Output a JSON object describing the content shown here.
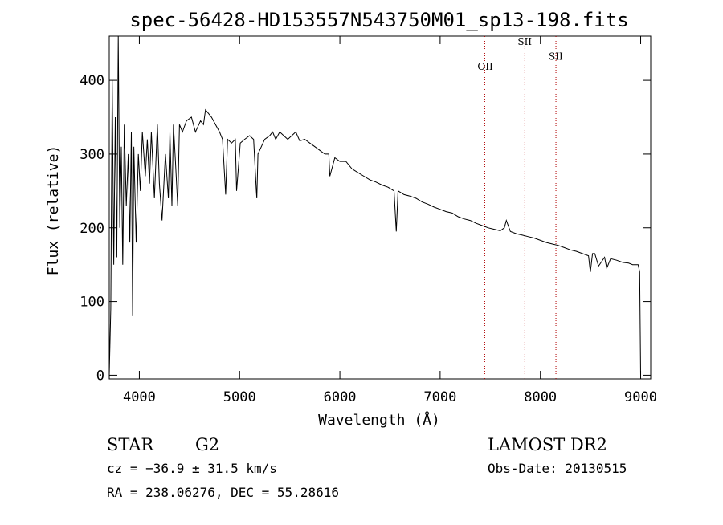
{
  "chart_data": {
    "type": "line",
    "title": "spec-56428-HD153557N543750M01_sp13-198.fits",
    "xlabel": "Wavelength (Å)",
    "ylabel": "Flux (relative)",
    "xlim": [
      3700,
      9100
    ],
    "ylim": [
      -5,
      460
    ],
    "xticks": [
      "4000",
      "5000",
      "6000",
      "7000",
      "8000",
      "9000"
    ],
    "yticks": [
      "0",
      "100",
      "200",
      "300",
      "400"
    ],
    "xtick_values": [
      4000,
      5000,
      6000,
      7000,
      8000,
      9000
    ],
    "ytick_values": [
      0,
      100,
      200,
      300,
      400
    ],
    "grid": false,
    "series": [
      {
        "x": [
          3700,
          3715,
          3730,
          3745,
          3760,
          3775,
          3790,
          3805,
          3820,
          3835,
          3850,
          3870,
          3890,
          3905,
          3920,
          3933,
          3945,
          3968,
          3990,
          4010,
          4030,
          4060,
          4080,
          4101,
          4120,
          4150,
          4180,
          4200,
          4226,
          4260,
          4290,
          4305,
          4325,
          4340,
          4360,
          4383,
          4400,
          4430,
          4470,
          4520,
          4560,
          4610,
          4640,
          4660,
          4690,
          4720,
          4760,
          4800,
          4830,
          4861,
          4880,
          4920,
          4957,
          4970,
          5007,
          5050,
          5100,
          5140,
          5167,
          5172,
          5183,
          5200,
          5250,
          5300,
          5330,
          5360,
          5400,
          5440,
          5480,
          5520,
          5560,
          5600,
          5650,
          5700,
          5750,
          5800,
          5850,
          5890,
          5900,
          5950,
          6000,
          6060,
          6120,
          6180,
          6240,
          6300,
          6360,
          6420,
          6480,
          6540,
          6563,
          6580,
          6640,
          6700,
          6760,
          6820,
          6880,
          6940,
          7000,
          7060,
          7120,
          7180,
          7240,
          7300,
          7360,
          7420,
          7480,
          7540,
          7600,
          7640,
          7660,
          7700,
          7760,
          7820,
          7880,
          7940,
          8000,
          8060,
          8120,
          8180,
          8240,
          8300,
          8360,
          8420,
          8480,
          8498,
          8520,
          8542,
          8580,
          8640,
          8662,
          8700,
          8760,
          8820,
          8880,
          8920,
          8950,
          8975,
          8990,
          9000
        ],
        "y": [
          0,
          90,
          400,
          150,
          350,
          160,
          460,
          200,
          310,
          150,
          340,
          230,
          300,
          180,
          330,
          80,
          310,
          180,
          300,
          250,
          330,
          270,
          320,
          260,
          330,
          240,
          340,
          260,
          210,
          300,
          240,
          330,
          230,
          340,
          290,
          230,
          340,
          330,
          345,
          350,
          330,
          345,
          340,
          360,
          355,
          350,
          340,
          330,
          320,
          245,
          320,
          315,
          320,
          250,
          315,
          320,
          325,
          320,
          250,
          240,
          300,
          305,
          320,
          325,
          330,
          320,
          330,
          325,
          320,
          325,
          330,
          318,
          320,
          315,
          310,
          305,
          300,
          300,
          270,
          295,
          290,
          290,
          280,
          275,
          270,
          265,
          262,
          258,
          255,
          250,
          195,
          250,
          245,
          243,
          240,
          235,
          232,
          228,
          225,
          222,
          220,
          215,
          212,
          210,
          206,
          203,
          200,
          198,
          196,
          200,
          210,
          195,
          192,
          190,
          188,
          186,
          183,
          180,
          178,
          176,
          173,
          170,
          168,
          165,
          162,
          140,
          165,
          165,
          148,
          160,
          145,
          158,
          156,
          153,
          152,
          150,
          150,
          150,
          140,
          0
        ]
      }
    ],
    "annotations": [
      {
        "label": "OII",
        "x": 7445,
        "label_y": 414
      },
      {
        "label": "SII",
        "x": 7845,
        "label_y": 448
      },
      {
        "label": "SII",
        "x": 8155,
        "label_y": 428
      }
    ],
    "line_colors": {
      "spectrum": "#000000",
      "markers": "#b00000"
    }
  },
  "info": {
    "object_type": "STAR",
    "subclass": "G2",
    "survey": "LAMOST DR2",
    "redshift_text": "cz = −36.9 ± 31.5 km/s",
    "obs_date_text": "Obs-Date: 20130515",
    "coords_text": "RA = 238.06276, DEC =  55.28616"
  }
}
